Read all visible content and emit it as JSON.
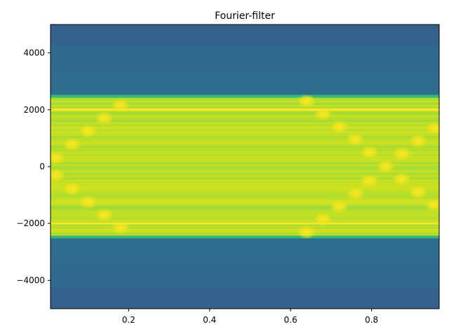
{
  "chart_data": {
    "type": "heatmap",
    "title": "Fourier-filter",
    "xlabel": "",
    "ylabel": "",
    "xlim": [
      0.007,
      0.967
    ],
    "ylim": [
      -5000,
      5000
    ],
    "x_ticks": [
      0.2,
      0.4,
      0.6,
      0.8
    ],
    "x_tick_labels": [
      "0.2",
      "0.4",
      "0.6",
      "0.8"
    ],
    "y_ticks": [
      -4000,
      -2000,
      0,
      2000,
      4000
    ],
    "y_tick_labels": [
      "−4000",
      "−2000",
      "0",
      "2000",
      "4000"
    ],
    "colormap": "viridis",
    "colors": {
      "outside_band_top": "#2f6d8e",
      "outside_band_edge": "#2a788e",
      "band_fill": "#b5de2b",
      "band_light": "#d8e219",
      "band_edge": "#35b779",
      "line_color": "#fde725",
      "dark_spot": "#3b528b"
    },
    "passband_y": [
      -2500,
      2500
    ],
    "horizontal_lines_y": [
      -2000,
      2000
    ],
    "chirp_points": [
      {
        "x": 0.02,
        "y": 300
      },
      {
        "x": 0.02,
        "y": -300
      },
      {
        "x": 0.06,
        "y": 780
      },
      {
        "x": 0.06,
        "y": -780
      },
      {
        "x": 0.1,
        "y": 1250
      },
      {
        "x": 0.1,
        "y": -1250
      },
      {
        "x": 0.14,
        "y": 1700
      },
      {
        "x": 0.14,
        "y": -1700
      },
      {
        "x": 0.18,
        "y": 2150
      },
      {
        "x": 0.18,
        "y": -2150
      },
      {
        "x": 0.64,
        "y": 2300
      },
      {
        "x": 0.64,
        "y": -2300
      },
      {
        "x": 0.68,
        "y": 1850
      },
      {
        "x": 0.68,
        "y": -1850
      },
      {
        "x": 0.72,
        "y": 1400
      },
      {
        "x": 0.72,
        "y": -1400
      },
      {
        "x": 0.76,
        "y": 950
      },
      {
        "x": 0.76,
        "y": -950
      },
      {
        "x": 0.795,
        "y": 500
      },
      {
        "x": 0.795,
        "y": -500
      },
      {
        "x": 0.835,
        "y": 0
      },
      {
        "x": 0.875,
        "y": 450
      },
      {
        "x": 0.875,
        "y": -450
      },
      {
        "x": 0.915,
        "y": 900
      },
      {
        "x": 0.915,
        "y": -900
      },
      {
        "x": 0.955,
        "y": 1350
      },
      {
        "x": 0.955,
        "y": -1350
      }
    ],
    "grid": false
  }
}
